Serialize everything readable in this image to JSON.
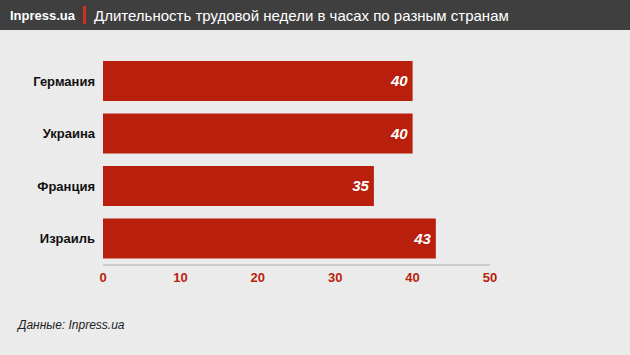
{
  "chart_data": {
    "type": "bar",
    "title": "Длительность трудовой недели в часах по разным странам",
    "annotations": [
      "Inpress.ua",
      "Данные: Inpress.ua"
    ],
    "categories": [
      "Германия",
      "Украина",
      "Франция",
      "Израиль"
    ],
    "values": [
      40,
      40,
      35,
      43
    ],
    "color": "#b81f0c",
    "orientation": "horizontal",
    "xlim": [
      0,
      50
    ],
    "xticks": [
      0,
      10,
      20,
      30,
      40,
      50
    ],
    "grid": false,
    "data_labels": true
  }
}
